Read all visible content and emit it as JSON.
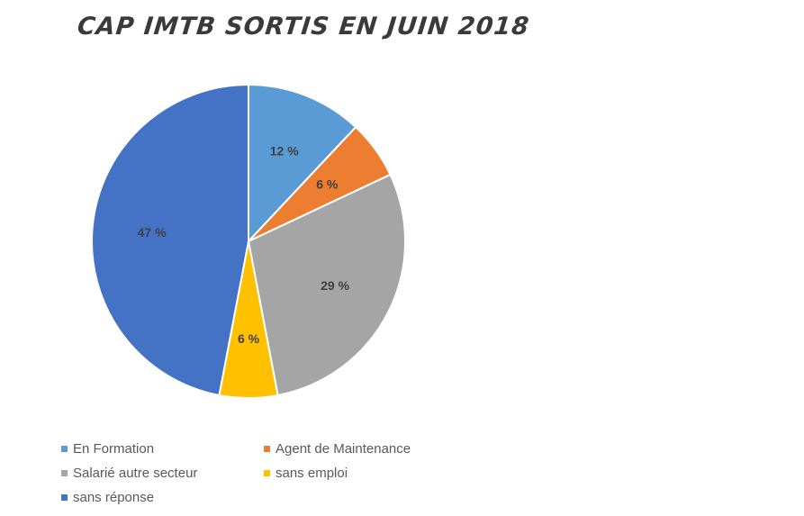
{
  "chart_data": {
    "type": "pie",
    "title": "CAP IMTB SORTIS EN JUIN 2018",
    "legend_position": "bottom",
    "slices": [
      {
        "label": "En Formation",
        "value": 12,
        "display": "12 %",
        "color": "#5b9bd5"
      },
      {
        "label": "Agent de Maintenance",
        "value": 6,
        "display": "6 %",
        "color": "#ed7d31"
      },
      {
        "label": "Salarié autre secteur",
        "value": 29,
        "display": "29 %",
        "color": "#a5a5a5"
      },
      {
        "label": "sans emploi",
        "value": 6,
        "display": "6 %",
        "color": "#ffc000"
      },
      {
        "label": "sans réponse",
        "value": 47,
        "display": "47 %",
        "color": "#4472c4"
      }
    ]
  }
}
